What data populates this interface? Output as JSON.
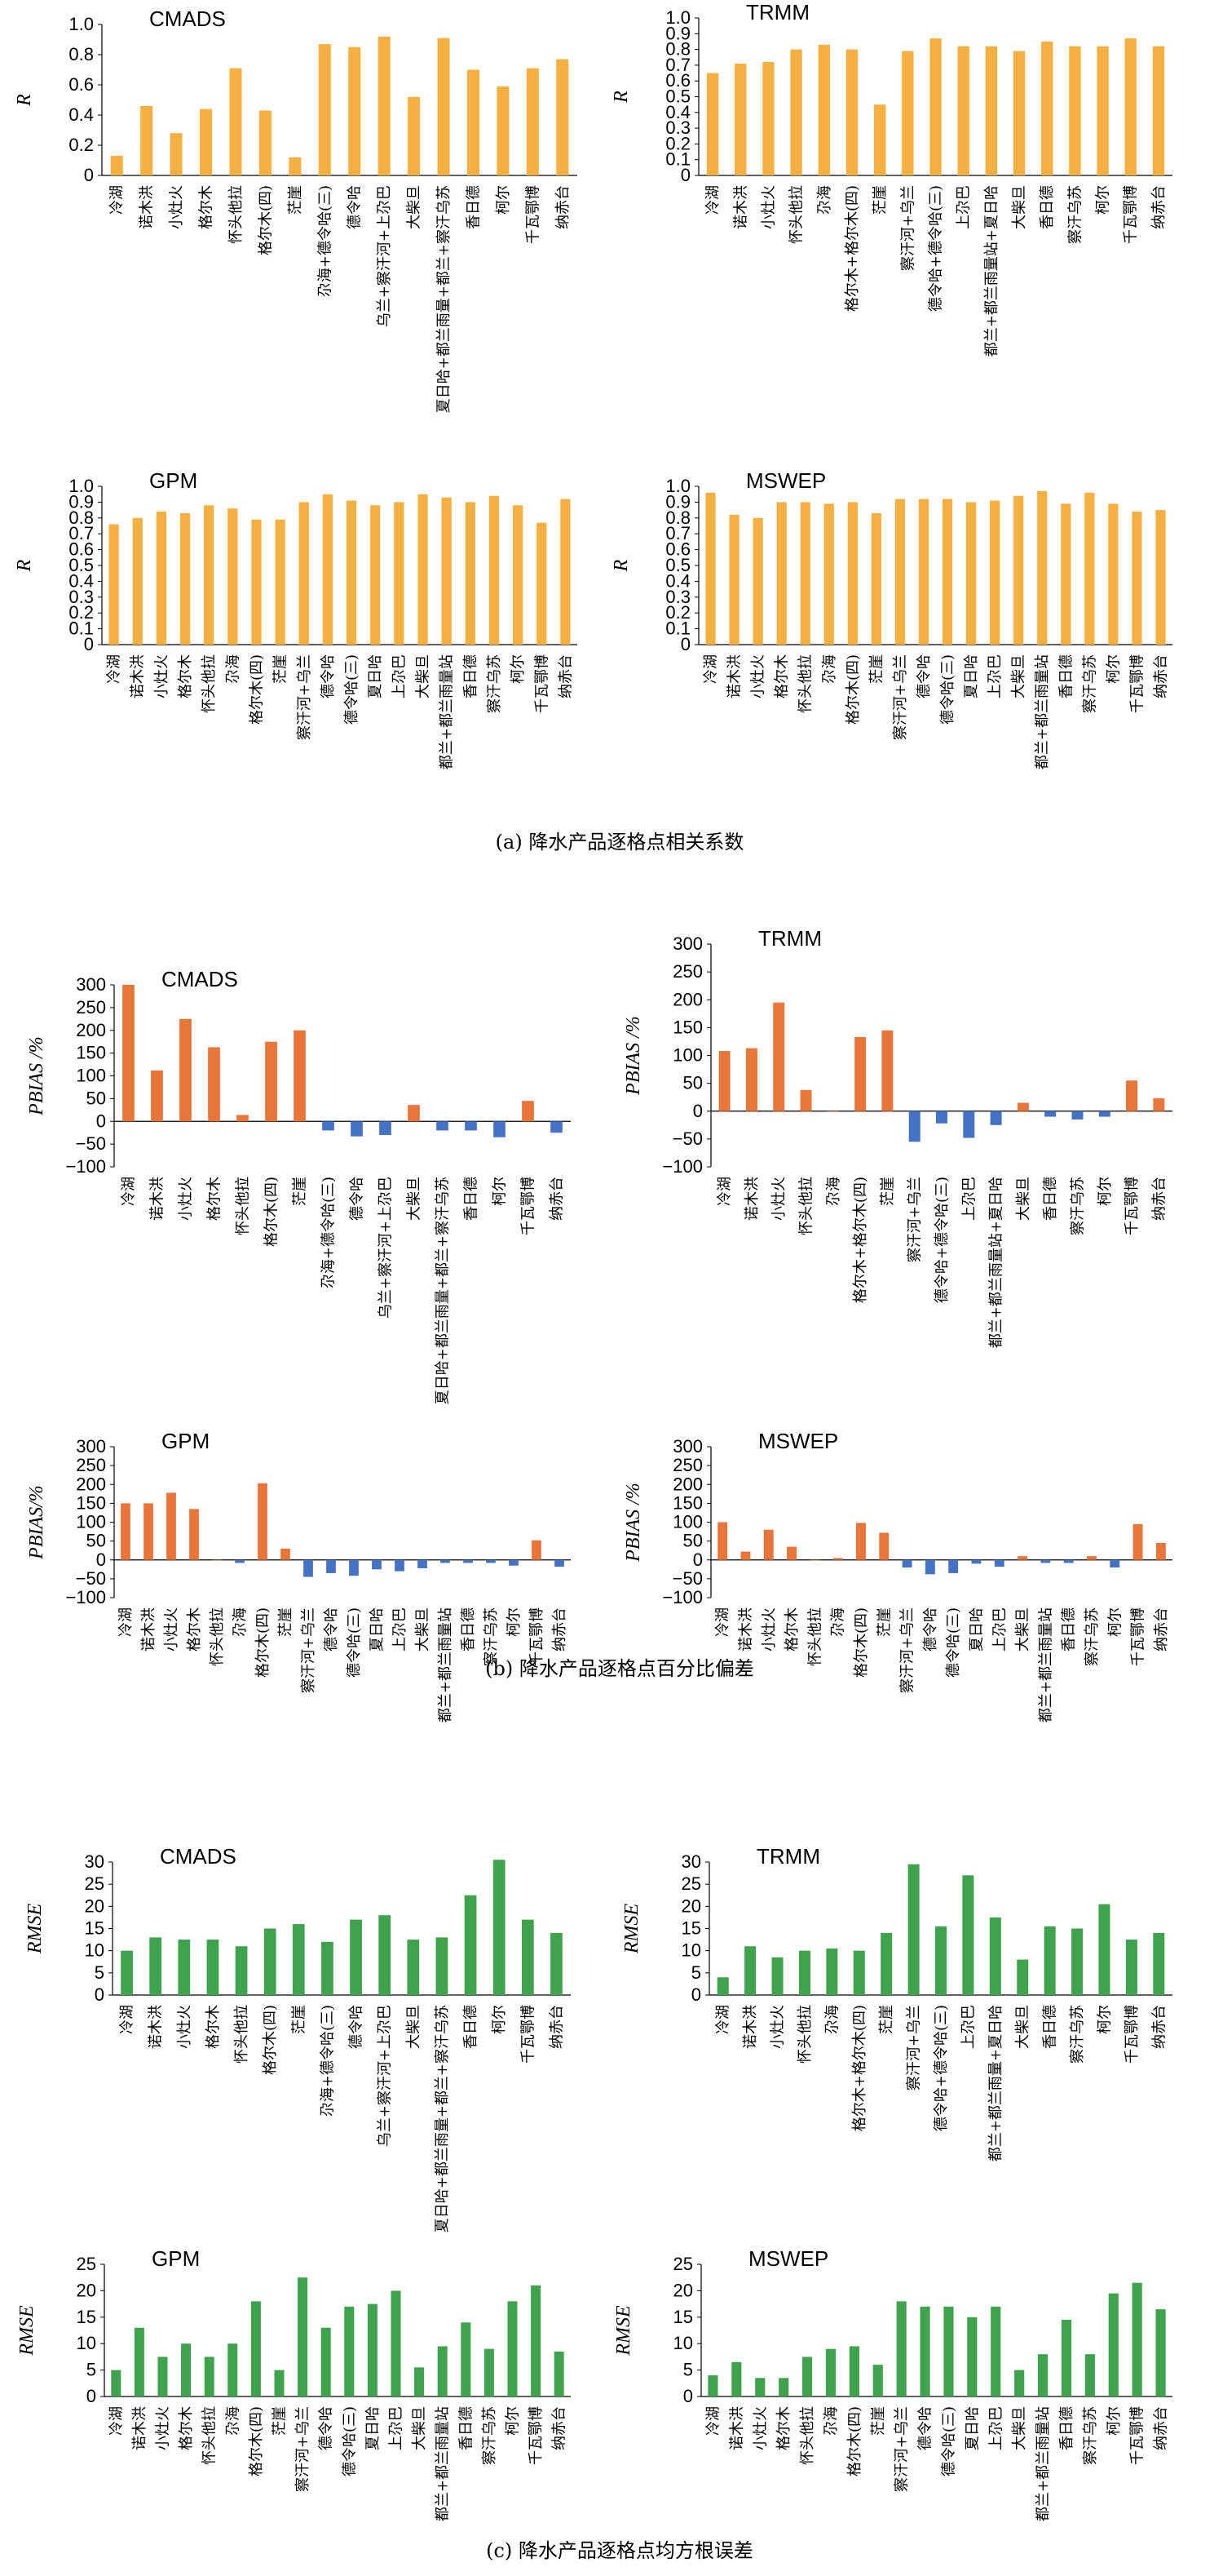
{
  "captions": [
    "(a) 降水产品逐格点相关系数",
    "(b) 降水产品逐格点百分比偏差",
    "(c) 降水产品逐格点均方根误差"
  ],
  "chart_data": [
    {
      "type": "bar",
      "title": "CMADS",
      "ylabel": "R",
      "ylim": [
        0,
        1.0
      ],
      "yticks": [
        "0",
        "0.2",
        "0.4",
        "0.6",
        "0.8",
        "1.0"
      ],
      "ytick_values": [
        0,
        0.2,
        0.4,
        0.6,
        0.8,
        1.0
      ],
      "grid": false,
      "color": "#F5B041",
      "categories": [
        "冷湖",
        "诺木洪",
        "小灶火",
        "格尔木",
        "怀头他拉",
        "格尔木(四)",
        "茫崖",
        "尕海+德令哈(三)",
        "德令哈",
        "乌兰+察汗河+上尕巴",
        "大柴旦",
        "夏日哈+都兰雨量+都兰+察汗乌苏",
        "香日德",
        "柯尔",
        "千瓦鄂博",
        "纳赤台"
      ],
      "values": [
        0.13,
        0.46,
        0.28,
        0.44,
        0.71,
        0.43,
        0.12,
        0.87,
        0.85,
        0.92,
        0.52,
        0.91,
        0.7,
        0.59,
        0.71,
        0.77
      ]
    },
    {
      "type": "bar",
      "title": "TRMM",
      "ylabel": "R",
      "ylim": [
        0,
        1.0
      ],
      "yticks": [
        "0",
        "0.1",
        "0.2",
        "0.3",
        "0.4",
        "0.5",
        "0.6",
        "0.7",
        "0.8",
        "0.9",
        "1.0"
      ],
      "ytick_values": [
        0,
        0.1,
        0.2,
        0.3,
        0.4,
        0.5,
        0.6,
        0.7,
        0.8,
        0.9,
        1.0
      ],
      "grid": false,
      "color": "#F5B041",
      "categories": [
        "冷湖",
        "诺木洪",
        "小灶火",
        "怀头他拉",
        "尕海",
        "格尔木+格尔木(四)",
        "茫崖",
        "察汗河+乌兰",
        "德令哈+德令哈(三)",
        "上尕巴",
        "都兰+都兰雨量站+夏日哈",
        "大柴旦",
        "香日德",
        "察汗乌苏",
        "柯尔",
        "千瓦鄂博",
        "纳赤台"
      ],
      "values": [
        0.65,
        0.71,
        0.72,
        0.8,
        0.83,
        0.8,
        0.45,
        0.79,
        0.87,
        0.82,
        0.82,
        0.79,
        0.85,
        0.82,
        0.82,
        0.87,
        0.82
      ]
    },
    {
      "type": "bar",
      "title": "GPM",
      "ylabel": "R",
      "ylim": [
        0,
        1.0
      ],
      "yticks": [
        "0",
        "0.1",
        "0.2",
        "0.3",
        "0.4",
        "0.5",
        "0.6",
        "0.7",
        "0.8",
        "0.9",
        "1.0"
      ],
      "ytick_values": [
        0,
        0.1,
        0.2,
        0.3,
        0.4,
        0.5,
        0.6,
        0.7,
        0.8,
        0.9,
        1.0
      ],
      "grid": false,
      "color": "#F5B041",
      "categories": [
        "冷湖",
        "诺木洪",
        "小灶火",
        "格尔木",
        "怀头他拉",
        "尕海",
        "格尔木(四)",
        "茫崖",
        "察汗河+乌兰",
        "德令哈",
        "德令哈(三)",
        "夏日哈",
        "上尕巴",
        "大柴旦",
        "都兰+都兰雨量站",
        "香日德",
        "察汗乌苏",
        "柯尔",
        "千瓦鄂博",
        "纳赤台"
      ],
      "values": [
        0.76,
        0.8,
        0.84,
        0.83,
        0.88,
        0.86,
        0.79,
        0.79,
        0.9,
        0.95,
        0.91,
        0.88,
        0.9,
        0.95,
        0.93,
        0.9,
        0.94,
        0.88,
        0.77,
        0.92
      ]
    },
    {
      "type": "bar",
      "title": "MSWEP",
      "ylabel": "R",
      "ylim": [
        0,
        1.0
      ],
      "yticks": [
        "0",
        "0.1",
        "0.2",
        "0.3",
        "0.4",
        "0.5",
        "0.6",
        "0.7",
        "0.8",
        "0.9",
        "1.0"
      ],
      "ytick_values": [
        0,
        0.1,
        0.2,
        0.3,
        0.4,
        0.5,
        0.6,
        0.7,
        0.8,
        0.9,
        1.0
      ],
      "grid": false,
      "color": "#F5B041",
      "categories": [
        "冷湖",
        "诺木洪",
        "小灶火",
        "格尔木",
        "怀头他拉",
        "尕海",
        "格尔木(四)",
        "茫崖",
        "察汗河+乌兰",
        "德令哈",
        "德令哈(三)",
        "夏日哈",
        "上尕巴",
        "大柴旦",
        "都兰+都兰雨量站",
        "香日德",
        "察汗乌苏",
        "柯尔",
        "千瓦鄂博",
        "纳赤台"
      ],
      "values": [
        0.96,
        0.82,
        0.8,
        0.9,
        0.9,
        0.89,
        0.9,
        0.83,
        0.92,
        0.92,
        0.92,
        0.9,
        0.91,
        0.94,
        0.97,
        0.89,
        0.96,
        0.89,
        0.84,
        0.85
      ]
    },
    {
      "type": "bar",
      "title": "CMADS",
      "ylabel": "PBIAS /%",
      "ylim": [
        -100,
        300
      ],
      "yticks": [
        "−100",
        "−50",
        "0",
        "50",
        "100",
        "150",
        "200",
        "250",
        "300"
      ],
      "ytick_values": [
        -100,
        -50,
        0,
        50,
        100,
        150,
        200,
        250,
        300
      ],
      "grid": false,
      "color_positive": "#E8763A",
      "color_negative": "#4472C4",
      "categories": [
        "冷湖",
        "诺木洪",
        "小灶火",
        "格尔木",
        "怀头他拉",
        "格尔木(四)",
        "茫崖",
        "尕海+德令哈(三)",
        "德令哈",
        "乌兰+察汗河+上尕巴",
        "大柴旦",
        "夏日哈+都兰雨量+都兰+察汗乌苏",
        "香日德",
        "柯尔",
        "千瓦鄂博",
        "纳赤台"
      ],
      "values": [
        300,
        112,
        225,
        163,
        14,
        175,
        200,
        -20,
        -33,
        -30,
        36,
        -20,
        -20,
        -35,
        45,
        -25
      ]
    },
    {
      "type": "bar",
      "title": "TRMM",
      "ylabel": "PBIAS /%",
      "ylim": [
        -100,
        300
      ],
      "yticks": [
        "−100",
        "−50",
        "0",
        "50",
        "100",
        "150",
        "200",
        "250",
        "300"
      ],
      "ytick_values": [
        -100,
        -50,
        0,
        50,
        100,
        150,
        200,
        250,
        300
      ],
      "grid": false,
      "color_positive": "#E8763A",
      "color_negative": "#4472C4",
      "categories": [
        "冷湖",
        "诺木洪",
        "小灶火",
        "怀头他拉",
        "尕海",
        "格尔木+格尔木(四)",
        "茫崖",
        "察汗河+乌兰",
        "德令哈+德令哈(三)",
        "上尕巴",
        "都兰+都兰雨量站+夏日哈",
        "大柴旦",
        "香日德",
        "察汗乌苏",
        "柯尔",
        "千瓦鄂博",
        "纳赤台"
      ],
      "values": [
        108,
        113,
        195,
        38,
        0,
        133,
        145,
        -55,
        -22,
        -48,
        -25,
        15,
        -10,
        -15,
        -10,
        55,
        23
      ]
    },
    {
      "type": "bar",
      "title": "GPM",
      "ylabel": "PBIAS/%",
      "ylim": [
        -100,
        300
      ],
      "yticks": [
        "−100",
        "−50",
        "0",
        "50",
        "100",
        "150",
        "200",
        "250",
        "300"
      ],
      "ytick_values": [
        -100,
        -50,
        0,
        50,
        100,
        150,
        200,
        250,
        300
      ],
      "grid": false,
      "color_positive": "#E8763A",
      "color_negative": "#4472C4",
      "categories": [
        "冷湖",
        "诺木洪",
        "小灶火",
        "格尔木",
        "怀头他拉",
        "尕海",
        "格尔木(四)",
        "茫崖",
        "察汗河+乌兰",
        "德令哈",
        "德令哈(三)",
        "夏日哈",
        "上尕巴",
        "大柴旦",
        "都兰+都兰雨量站",
        "香日德",
        "察汗乌苏",
        "柯尔",
        "千瓦鄂博",
        "纳赤台"
      ],
      "values": [
        150,
        150,
        178,
        135,
        0,
        -8,
        203,
        30,
        -45,
        -35,
        -42,
        -25,
        -30,
        -22,
        -8,
        -8,
        -8,
        -15,
        52,
        -18
      ]
    },
    {
      "type": "bar",
      "title": "MSWEP",
      "ylabel": "PBIAS /%",
      "ylim": [
        -100,
        300
      ],
      "yticks": [
        "−100",
        "−50",
        "0",
        "50",
        "100",
        "150",
        "200",
        "250",
        "300"
      ],
      "ytick_values": [
        -100,
        -50,
        0,
        50,
        100,
        150,
        200,
        250,
        300
      ],
      "grid": false,
      "color_positive": "#E8763A",
      "color_negative": "#4472C4",
      "categories": [
        "冷湖",
        "诺木洪",
        "小灶火",
        "格尔木",
        "怀头他拉",
        "尕海",
        "格尔木(四)",
        "茫崖",
        "察汗河+乌兰",
        "德令哈",
        "德令哈(三)",
        "夏日哈",
        "上尕巴",
        "大柴旦",
        "都兰+都兰雨量站",
        "香日德",
        "察汗乌苏",
        "柯尔",
        "千瓦鄂博",
        "纳赤台"
      ],
      "values": [
        100,
        22,
        80,
        35,
        0,
        5,
        98,
        72,
        -20,
        -38,
        -35,
        -10,
        -18,
        10,
        -8,
        -8,
        10,
        -20,
        95,
        45
      ]
    },
    {
      "type": "bar",
      "title": "CMADS",
      "ylabel": "RMSE",
      "ylim": [
        0,
        30
      ],
      "yticks": [
        "0",
        "5",
        "10",
        "15",
        "20",
        "25",
        "30"
      ],
      "ytick_values": [
        0,
        5,
        10,
        15,
        20,
        25,
        30
      ],
      "grid": false,
      "color": "#3FA34D",
      "categories": [
        "冷湖",
        "诺木洪",
        "小灶火",
        "格尔木",
        "怀头他拉",
        "格尔木(四)",
        "茫崖",
        "尕海+德令哈(三)",
        "德令哈",
        "乌兰+察汗河+上尕巴",
        "大柴旦",
        "夏日哈+都兰雨量+都兰+察汗乌苏",
        "香日德",
        "柯尔",
        "千瓦鄂博",
        "纳赤台"
      ],
      "values": [
        10,
        13,
        12.5,
        12.5,
        11,
        15,
        16,
        12,
        17,
        18,
        12.5,
        13,
        22.5,
        30.5,
        17,
        14
      ]
    },
    {
      "type": "bar",
      "title": "TRMM",
      "ylabel": "RMSE",
      "ylim": [
        0,
        30
      ],
      "yticks": [
        "0",
        "5",
        "10",
        "15",
        "20",
        "25",
        "30"
      ],
      "ytick_values": [
        0,
        5,
        10,
        15,
        20,
        25,
        30
      ],
      "grid": false,
      "color": "#3FA34D",
      "categories": [
        "冷湖",
        "诺木洪",
        "小灶火",
        "怀头他拉",
        "尕海",
        "格尔木+格尔木(四)",
        "茫崖",
        "察汗河+乌兰",
        "德令哈+德令哈(三)",
        "上尕巴",
        "都兰+都兰雨量+夏日哈",
        "大柴旦",
        "香日德",
        "察汗乌苏",
        "柯尔",
        "千瓦鄂博",
        "纳赤台"
      ],
      "values": [
        4,
        11,
        8.5,
        10,
        10.5,
        10,
        14,
        29.5,
        15.5,
        27,
        17.5,
        8,
        15.5,
        15,
        20.5,
        12.5,
        14
      ]
    },
    {
      "type": "bar",
      "title": "GPM",
      "ylabel": "RMSE",
      "ylim": [
        0,
        25
      ],
      "yticks": [
        "0",
        "5",
        "10",
        "15",
        "20",
        "25"
      ],
      "ytick_values": [
        0,
        5,
        10,
        15,
        20,
        25
      ],
      "grid": false,
      "color": "#3FA34D",
      "categories": [
        "冷湖",
        "诺木洪",
        "小灶火",
        "格尔木",
        "怀头他拉",
        "尕海",
        "格尔木(四)",
        "茫崖",
        "察汗河+乌兰",
        "德令哈",
        "德令哈(三)",
        "夏日哈",
        "上尕巴",
        "大柴旦",
        "都兰+都兰雨量站",
        "香日德",
        "察汗乌苏",
        "柯尔",
        "千瓦鄂博",
        "纳赤台"
      ],
      "values": [
        5,
        13,
        7.5,
        10,
        7.5,
        10,
        18,
        5,
        22.5,
        13,
        17,
        17.5,
        20,
        5.5,
        9.5,
        14,
        9,
        18,
        21,
        8.5
      ]
    },
    {
      "type": "bar",
      "title": "MSWEP",
      "ylabel": "RMSE",
      "ylim": [
        0,
        25
      ],
      "yticks": [
        "0",
        "5",
        "10",
        "15",
        "20",
        "25"
      ],
      "ytick_values": [
        0,
        5,
        10,
        15,
        20,
        25
      ],
      "grid": false,
      "color": "#3FA34D",
      "categories": [
        "冷湖",
        "诺木洪",
        "小灶火",
        "格尔木",
        "怀头他拉",
        "尕海",
        "格尔木(四)",
        "茫崖",
        "察汗河+乌兰",
        "德令哈",
        "德令哈(三)",
        "夏日哈",
        "上尕巴",
        "大柴旦",
        "都兰+都兰雨量站",
        "香日德",
        "察汗乌苏",
        "柯尔",
        "千瓦鄂博",
        "纳赤台"
      ],
      "values": [
        4,
        6.5,
        3.5,
        3.5,
        7.5,
        9,
        9.5,
        6,
        18,
        17,
        17,
        15,
        17,
        5,
        8,
        14.5,
        8,
        19.5,
        21.5,
        16.5
      ]
    }
  ]
}
